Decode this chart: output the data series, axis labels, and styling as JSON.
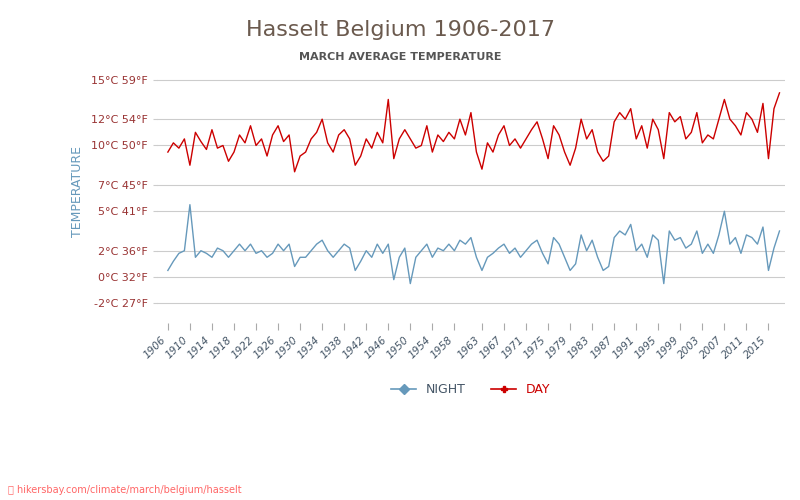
{
  "title": "Hasselt Belgium 1906-2017",
  "subtitle": "MARCH AVERAGE TEMPERATURE",
  "ylabel": "TEMPERATURE",
  "watermark": "hikersbay.com/climate/march/belgium/hasselt",
  "yticks_c": [
    -2,
    0,
    2,
    5,
    7,
    10,
    12,
    15
  ],
  "yticks_f": [
    27,
    32,
    36,
    41,
    45,
    50,
    54,
    59
  ],
  "ylim": [
    -3.5,
    16.5
  ],
  "years": [
    1906,
    1907,
    1908,
    1909,
    1910,
    1911,
    1912,
    1913,
    1914,
    1915,
    1916,
    1917,
    1918,
    1919,
    1920,
    1921,
    1922,
    1923,
    1924,
    1925,
    1926,
    1927,
    1928,
    1929,
    1930,
    1931,
    1932,
    1933,
    1934,
    1935,
    1936,
    1937,
    1938,
    1939,
    1940,
    1941,
    1942,
    1943,
    1944,
    1945,
    1946,
    1947,
    1948,
    1949,
    1950,
    1951,
    1952,
    1953,
    1954,
    1955,
    1956,
    1957,
    1958,
    1959,
    1960,
    1961,
    1962,
    1963,
    1964,
    1965,
    1966,
    1967,
    1968,
    1969,
    1970,
    1971,
    1972,
    1973,
    1974,
    1975,
    1976,
    1977,
    1978,
    1979,
    1980,
    1981,
    1982,
    1983,
    1984,
    1985,
    1986,
    1987,
    1988,
    1989,
    1990,
    1991,
    1992,
    1993,
    1994,
    1995,
    1996,
    1997,
    1998,
    1999,
    2000,
    2001,
    2002,
    2003,
    2004,
    2005,
    2006,
    2007,
    2008,
    2009,
    2010,
    2011,
    2012,
    2013,
    2014,
    2015,
    2016,
    2017
  ],
  "day_temps": [
    9.5,
    10.2,
    9.8,
    10.5,
    8.5,
    11.0,
    10.3,
    9.7,
    11.2,
    9.8,
    10.0,
    8.8,
    9.5,
    10.8,
    10.2,
    11.5,
    10.0,
    10.5,
    9.2,
    10.8,
    11.5,
    10.3,
    10.8,
    8.0,
    9.2,
    9.5,
    10.5,
    11.0,
    12.0,
    10.2,
    9.5,
    10.8,
    11.2,
    10.5,
    8.5,
    9.2,
    10.5,
    9.8,
    11.0,
    10.2,
    13.5,
    9.0,
    10.5,
    11.2,
    10.5,
    9.8,
    10.0,
    11.5,
    9.5,
    10.8,
    10.3,
    11.0,
    10.5,
    12.0,
    10.8,
    12.5,
    9.5,
    8.2,
    10.2,
    9.5,
    10.8,
    11.5,
    10.0,
    10.5,
    9.8,
    10.5,
    11.2,
    11.8,
    10.5,
    9.0,
    11.5,
    10.8,
    9.5,
    8.5,
    9.8,
    12.0,
    10.5,
    11.2,
    9.5,
    8.8,
    9.2,
    11.8,
    12.5,
    12.0,
    12.8,
    10.5,
    11.5,
    9.8,
    12.0,
    11.2,
    9.0,
    12.5,
    11.8,
    12.2,
    10.5,
    11.0,
    12.5,
    10.2,
    10.8,
    10.5,
    12.0,
    13.5,
    12.0,
    11.5,
    10.8,
    12.5,
    12.0,
    11.0,
    13.2,
    9.0,
    12.8,
    14.0
  ],
  "night_temps": [
    0.5,
    1.2,
    1.8,
    2.0,
    5.5,
    1.5,
    2.0,
    1.8,
    1.5,
    2.2,
    2.0,
    1.5,
    2.0,
    2.5,
    2.0,
    2.5,
    1.8,
    2.0,
    1.5,
    1.8,
    2.5,
    2.0,
    2.5,
    0.8,
    1.5,
    1.5,
    2.0,
    2.5,
    2.8,
    2.0,
    1.5,
    2.0,
    2.5,
    2.2,
    0.5,
    1.2,
    2.0,
    1.5,
    2.5,
    1.8,
    2.5,
    -0.2,
    1.5,
    2.2,
    -0.5,
    1.5,
    2.0,
    2.5,
    1.5,
    2.2,
    2.0,
    2.5,
    2.0,
    2.8,
    2.5,
    3.0,
    1.5,
    0.5,
    1.5,
    1.8,
    2.2,
    2.5,
    1.8,
    2.2,
    1.5,
    2.0,
    2.5,
    2.8,
    1.8,
    1.0,
    3.0,
    2.5,
    1.5,
    0.5,
    1.0,
    3.2,
    2.0,
    2.8,
    1.5,
    0.5,
    0.8,
    3.0,
    3.5,
    3.2,
    4.0,
    2.0,
    2.5,
    1.5,
    3.2,
    2.8,
    -0.5,
    3.5,
    2.8,
    3.0,
    2.2,
    2.5,
    3.5,
    1.8,
    2.5,
    1.8,
    3.2,
    5.0,
    2.5,
    3.0,
    1.8,
    3.2,
    3.0,
    2.5,
    3.8,
    0.5,
    2.2,
    3.5
  ],
  "day_color": "#cc0000",
  "night_color": "#6699bb",
  "grid_color": "#cccccc",
  "title_color": "#6b5a4e",
  "subtitle_color": "#555555",
  "ylabel_color": "#6699bb",
  "tick_color": "#993333",
  "background_color": "#ffffff",
  "watermark_color": "#ff6666",
  "legend_night": "NIGHT",
  "legend_day": "DAY",
  "xtick_years": [
    1906,
    1910,
    1914,
    1918,
    1922,
    1926,
    1930,
    1934,
    1938,
    1942,
    1946,
    1950,
    1954,
    1958,
    1963,
    1967,
    1971,
    1975,
    1979,
    1983,
    1987,
    1991,
    1995,
    1999,
    2003,
    2007,
    2011,
    2015
  ]
}
